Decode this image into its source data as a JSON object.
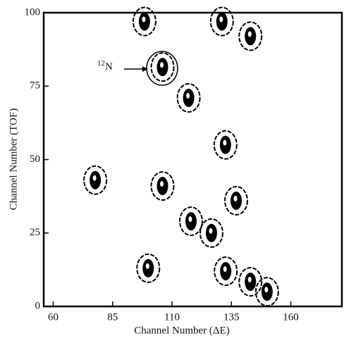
{
  "chart_data": {
    "type": "scatter",
    "xlabel": "Channel Number (ΔE)",
    "ylabel": "Channel Number (TOF)",
    "annotation": {
      "superscript": "12",
      "text": "N"
    },
    "x": [
      98.4,
      131,
      143,
      106,
      117,
      132.5,
      77.7,
      106,
      137,
      118,
      126.6,
      100,
      132.6,
      143,
      150
    ],
    "y": [
      97,
      97,
      92,
      81.5,
      71,
      55,
      43,
      41,
      36,
      29,
      25,
      13,
      12,
      8.4,
      5
    ],
    "color": "#000000",
    "xlim": [
      56,
      181.5
    ],
    "ylim": [
      0,
      100
    ],
    "xticks": [
      60,
      85,
      110,
      135,
      160
    ],
    "yticks": [
      0,
      25,
      50,
      75,
      100
    ]
  }
}
